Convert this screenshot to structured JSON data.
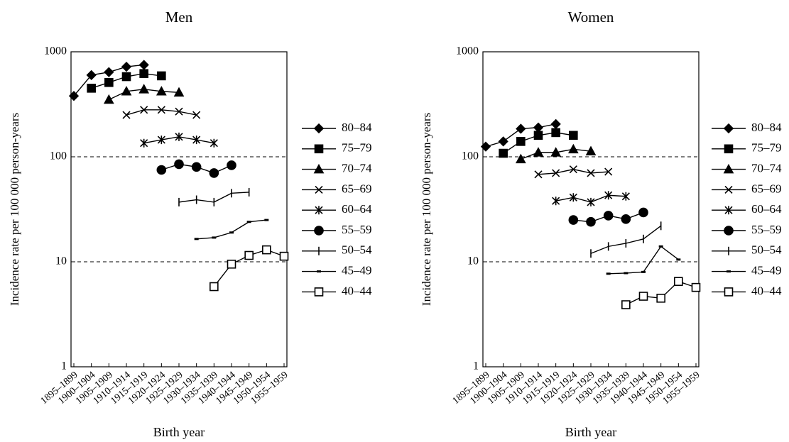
{
  "chart_data": [
    {
      "type": "line",
      "title": "Men",
      "x_label": "Birth year",
      "y_label": "Incidence rate per 100 000 person-years",
      "log_scale": true,
      "ylim": [
        1,
        1000
      ],
      "yticks": [
        1,
        10,
        100,
        1000
      ],
      "grid_values": [
        10,
        100
      ],
      "legend": "right",
      "categories": [
        "1895–1899",
        "1900–1904",
        "1905–1909",
        "1910–1914",
        "1915–1919",
        "1920–1924",
        "1925–1929",
        "1930–1934",
        "1935–1939",
        "1940–1944",
        "1945–1949",
        "1950–1954",
        "1955–1959"
      ],
      "series": [
        {
          "name": "80–84",
          "marker": "diamond",
          "color": "#000000",
          "values": [
            380,
            600,
            640,
            720,
            750,
            null,
            null,
            null,
            null,
            null,
            null,
            null,
            null
          ]
        },
        {
          "name": "75–79",
          "marker": "square",
          "color": "#000000",
          "values": [
            null,
            450,
            510,
            580,
            620,
            590,
            null,
            null,
            null,
            null,
            null,
            null,
            null
          ]
        },
        {
          "name": "70–74",
          "marker": "triangle",
          "color": "#000000",
          "values": [
            null,
            null,
            350,
            420,
            440,
            420,
            410,
            null,
            null,
            null,
            null,
            null,
            null
          ]
        },
        {
          "name": "65–69",
          "marker": "cross",
          "color": "#000000",
          "values": [
            null,
            null,
            null,
            250,
            280,
            280,
            270,
            250,
            null,
            null,
            null,
            null,
            null
          ]
        },
        {
          "name": "60–64",
          "marker": "asterisk",
          "color": "#000000",
          "values": [
            null,
            null,
            null,
            null,
            135,
            145,
            155,
            145,
            135,
            null,
            null,
            null,
            null
          ]
        },
        {
          "name": "55–59",
          "marker": "circle",
          "color": "#000000",
          "values": [
            null,
            null,
            null,
            null,
            null,
            75,
            85,
            80,
            70,
            83,
            null,
            null,
            null
          ]
        },
        {
          "name": "50–54",
          "marker": "vbar",
          "color": "#000000",
          "values": [
            null,
            null,
            null,
            null,
            null,
            null,
            37,
            39,
            37,
            45,
            46,
            null,
            null
          ]
        },
        {
          "name": "45–49",
          "marker": "dash",
          "color": "#000000",
          "values": [
            null,
            null,
            null,
            null,
            null,
            null,
            null,
            16.5,
            17,
            19,
            24,
            25,
            null
          ]
        },
        {
          "name": "40–44",
          "marker": "opensquare",
          "color": "#000000",
          "values": [
            null,
            null,
            null,
            null,
            null,
            null,
            null,
            null,
            5.8,
            9.5,
            11.5,
            13,
            11.3
          ]
        }
      ]
    },
    {
      "type": "line",
      "title": "Women",
      "x_label": "Birth year",
      "y_label": "Incidence rate per 100 000 person-years",
      "log_scale": true,
      "ylim": [
        1,
        1000
      ],
      "yticks": [
        1,
        10,
        100,
        1000
      ],
      "grid_values": [
        10,
        100
      ],
      "legend": "right",
      "categories": [
        "1895–1899",
        "1900–1904",
        "1905–1909",
        "1910–1914",
        "1915–1919",
        "1920–1924",
        "1925–1929",
        "1930–1934",
        "1935–1939",
        "1940–1944",
        "1945–1949",
        "1950–1954",
        "1955–1959"
      ],
      "series": [
        {
          "name": "80–84",
          "marker": "diamond",
          "color": "#000000",
          "values": [
            125,
            140,
            185,
            190,
            205,
            null,
            null,
            null,
            null,
            null,
            null,
            null,
            null
          ]
        },
        {
          "name": "75–79",
          "marker": "square",
          "color": "#000000",
          "values": [
            null,
            108,
            140,
            160,
            170,
            160,
            null,
            null,
            null,
            null,
            null,
            null,
            null
          ]
        },
        {
          "name": "70–74",
          "marker": "triangle",
          "color": "#000000",
          "values": [
            null,
            null,
            95,
            110,
            110,
            118,
            113,
            null,
            null,
            null,
            null,
            null,
            null
          ]
        },
        {
          "name": "65–69",
          "marker": "cross",
          "color": "#000000",
          "values": [
            null,
            null,
            null,
            68,
            70,
            76,
            70,
            72,
            null,
            null,
            null,
            null,
            null
          ]
        },
        {
          "name": "60–64",
          "marker": "asterisk",
          "color": "#000000",
          "values": [
            null,
            null,
            null,
            null,
            38,
            41,
            37,
            43,
            42,
            null,
            null,
            null,
            null
          ]
        },
        {
          "name": "55–59",
          "marker": "circle",
          "color": "#000000",
          "values": [
            null,
            null,
            null,
            null,
            null,
            25,
            24,
            27.5,
            25.5,
            29.5,
            null,
            null,
            null
          ]
        },
        {
          "name": "50–54",
          "marker": "vbar",
          "color": "#000000",
          "values": [
            null,
            null,
            null,
            null,
            null,
            null,
            12,
            14,
            15,
            16.5,
            22,
            null,
            null
          ]
        },
        {
          "name": "45–49",
          "marker": "dash",
          "color": "#000000",
          "values": [
            null,
            null,
            null,
            null,
            null,
            null,
            null,
            7.7,
            7.8,
            8,
            14,
            10.5,
            null
          ]
        },
        {
          "name": "40–44",
          "marker": "opensquare",
          "color": "#000000",
          "values": [
            null,
            null,
            null,
            null,
            null,
            null,
            null,
            null,
            3.9,
            4.7,
            4.5,
            6.5,
            5.7
          ]
        }
      ]
    }
  ]
}
